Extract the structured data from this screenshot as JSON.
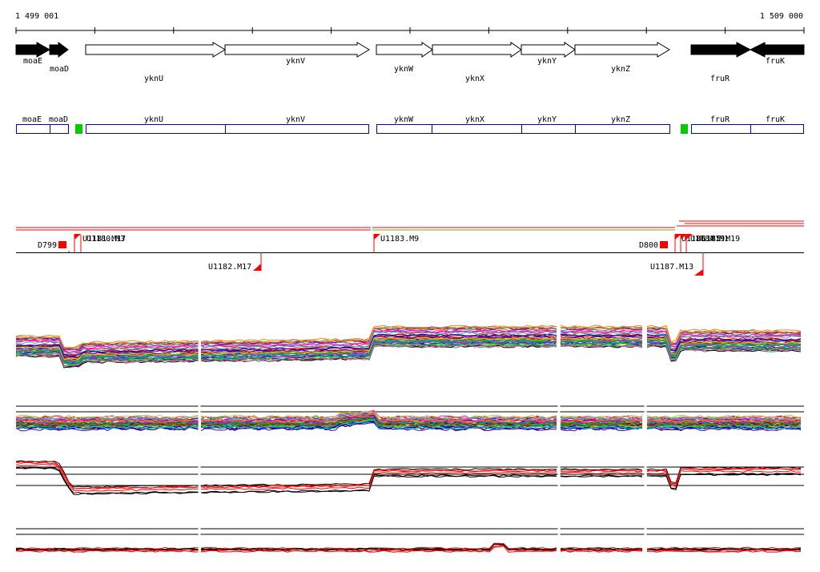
{
  "ruler": {
    "start": "1 499 001",
    "end": "1 509 000"
  },
  "genes": [
    {
      "name": "moaE",
      "strand": "+",
      "known": true
    },
    {
      "name": "moaD",
      "strand": "+",
      "known": true
    },
    {
      "name": "yknU",
      "strand": "+",
      "known": false
    },
    {
      "name": "yknV",
      "strand": "+",
      "known": false
    },
    {
      "name": "yknW",
      "strand": "+",
      "known": false
    },
    {
      "name": "yknX",
      "strand": "+",
      "known": false
    },
    {
      "name": "yknY",
      "strand": "+",
      "known": false
    },
    {
      "name": "yknZ",
      "strand": "+",
      "known": false
    },
    {
      "name": "fruR",
      "strand": "-",
      "known": true
    },
    {
      "name": "fruK",
      "strand": "+",
      "known": true
    }
  ],
  "features": [
    {
      "label": "D799",
      "type": "downshift"
    },
    {
      "label": "U1181.M17",
      "type": "upshift"
    },
    {
      "label": "U1180.M3",
      "type": "upshift"
    },
    {
      "label": "U1182.M17",
      "type": "upshift"
    },
    {
      "label": "U1183.M9",
      "type": "upshift"
    },
    {
      "label": "D800",
      "type": "downshift"
    },
    {
      "label": "U1186.M19",
      "type": "upshift"
    },
    {
      "label": "U1184.M1",
      "type": "upshift"
    },
    {
      "label": "U1185.M19",
      "type": "upshift"
    },
    {
      "label": "U1187.M13",
      "type": "upshift"
    }
  ],
  "colors": {
    "gene_known": "#000000",
    "gene_unknown": "#ffffff",
    "gene_box": "#0000cc",
    "terminator": "#00cc00",
    "feature": "#ff0000",
    "trace_palette": [
      "#ff0000",
      "#00cc00",
      "#0000ff",
      "#ff00ff",
      "#00cccc",
      "#cccc00",
      "#880088",
      "#008888",
      "#ff8800",
      "#888888",
      "#000000",
      "#aa0000",
      "#00aa55",
      "#5500aa",
      "#ff66aa"
    ]
  }
}
